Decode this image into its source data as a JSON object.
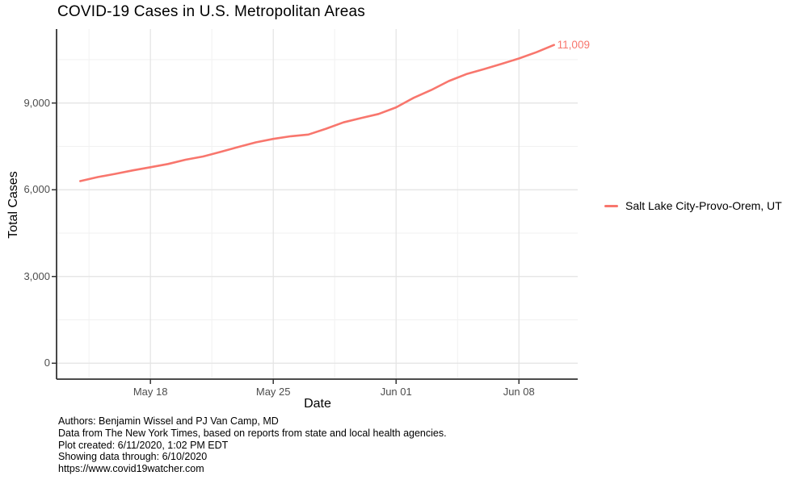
{
  "chart_data": {
    "type": "line",
    "title": "COVID-19 Cases in U.S. Metropolitan Areas",
    "xlabel": "Date",
    "ylabel": "Total Cases",
    "x": [
      "May 14",
      "May 15",
      "May 16",
      "May 17",
      "May 18",
      "May 19",
      "May 20",
      "May 21",
      "May 22",
      "May 23",
      "May 24",
      "May 25",
      "May 26",
      "May 27",
      "May 28",
      "May 29",
      "May 30",
      "May 31",
      "Jun 01",
      "Jun 02",
      "Jun 03",
      "Jun 04",
      "Jun 05",
      "Jun 06",
      "Jun 07",
      "Jun 08",
      "Jun 09",
      "Jun 10"
    ],
    "series": [
      {
        "name": "Salt Lake City-Provo-Orem, UT",
        "values": [
          6300,
          6440,
          6550,
          6670,
          6780,
          6890,
          7040,
          7150,
          7310,
          7480,
          7640,
          7760,
          7850,
          7910,
          8110,
          8330,
          8480,
          8620,
          8850,
          9180,
          9450,
          9760,
          10000,
          10170,
          10350,
          10540,
          10760,
          11009
        ]
      }
    ],
    "end_label": "11,009",
    "ylim": [
      0,
      11009
    ],
    "y_ticks": [
      {
        "value": 0,
        "label": "0"
      },
      {
        "value": 3000,
        "label": "3,000"
      },
      {
        "value": 6000,
        "label": "6,000"
      },
      {
        "value": 9000,
        "label": "9,000"
      }
    ],
    "y_minor": [
      1500,
      4500,
      7500,
      10500
    ],
    "x_ticks": [
      {
        "day_index": 4,
        "label": "May 18"
      },
      {
        "day_index": 11,
        "label": "May 25"
      },
      {
        "day_index": 18,
        "label": "Jun 01"
      },
      {
        "day_index": 25,
        "label": "Jun 08"
      }
    ],
    "x_minor": [
      0.5,
      7.5,
      14.5,
      21.5
    ],
    "grid": "major+minor",
    "legend_position": "right"
  },
  "colors": {
    "series_line": "#F8766D",
    "tick_label": "#4d4d4d",
    "grid_major": "#e3e3e3",
    "grid_minor": "#f1f1f1",
    "axis_line": "#333333"
  },
  "footer": {
    "lines": [
      "Authors: Benjamin Wissel and PJ Van Camp, MD",
      "Data from The New York Times, based on reports from state and local health agencies.",
      "Plot created: 6/11/2020, 1:02 PM EDT",
      "Showing data through: 6/10/2020",
      "https://www.covid19watcher.com"
    ]
  }
}
